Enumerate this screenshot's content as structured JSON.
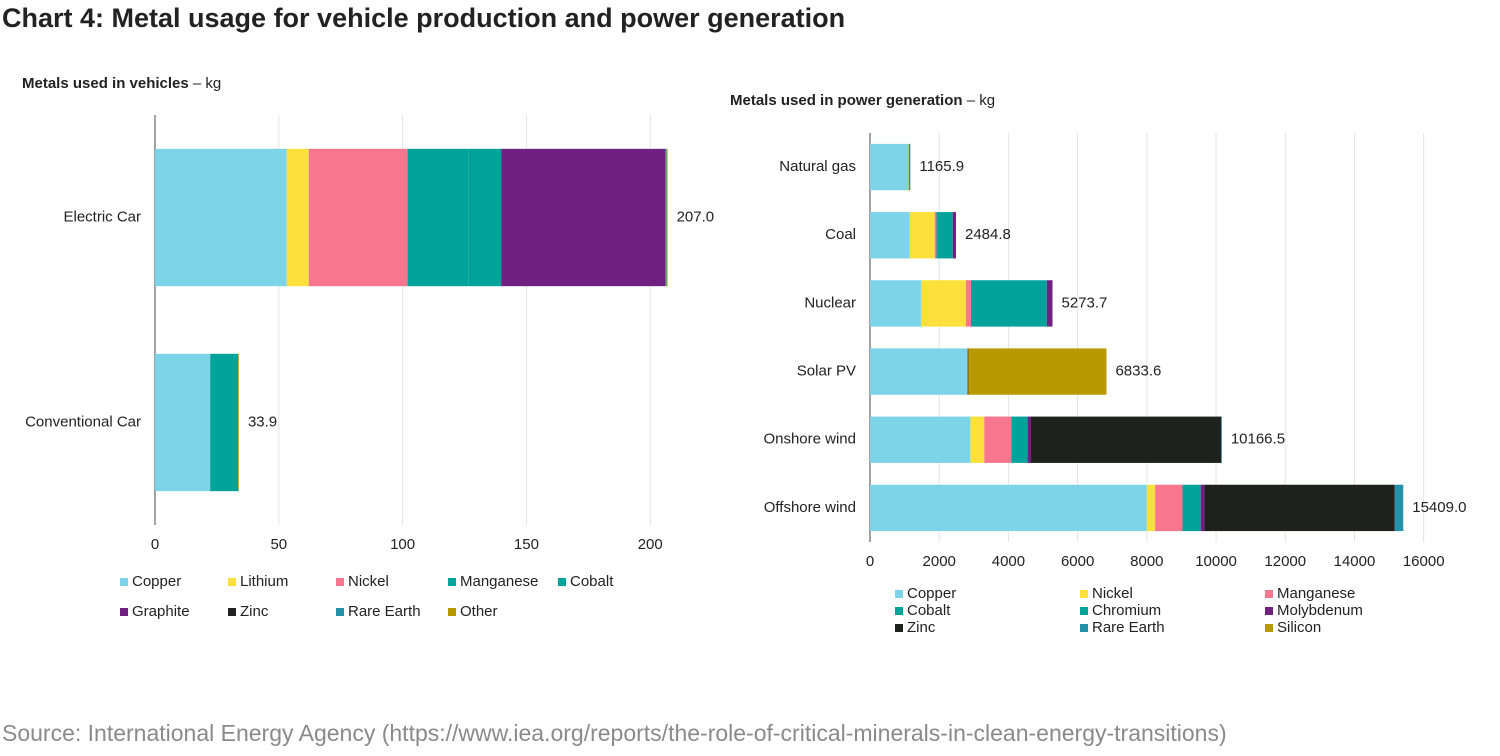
{
  "title": "Chart 4: Metal usage for vehicle production and power generation",
  "source": "Source: International Energy Agency (https://www.iea.org/reports/the-role-of-critical-minerals-in-clean-energy-transitions)",
  "chart_data": [
    {
      "type": "stacked_bar_horizontal",
      "title": "Metals used in vehicles",
      "unit": " – kg",
      "categories": [
        "Electric Car",
        "Conventional Car"
      ],
      "series": [
        {
          "name": "Copper",
          "color": "#7dd3e8",
          "values": [
            53.2,
            22.3
          ]
        },
        {
          "name": "Lithium",
          "color": "#fde03c",
          "values": [
            8.9,
            0
          ]
        },
        {
          "name": "Nickel",
          "color": "#f8778f",
          "values": [
            39.9,
            0
          ]
        },
        {
          "name": "Manganese",
          "color": "#00a39a",
          "values": [
            24.5,
            11.3
          ]
        },
        {
          "name": "Cobalt",
          "color": "#00a39a",
          "values": [
            13.3,
            0
          ]
        },
        {
          "name": "Graphite",
          "color": "#6f2080",
          "values": [
            66.3,
            0
          ]
        },
        {
          "name": "Zinc",
          "color": "#222222",
          "values": [
            0,
            0
          ]
        },
        {
          "name": "Rare Earth",
          "color": "#2491a8",
          "values": [
            0.5,
            0
          ]
        },
        {
          "name": "Other",
          "color": "#b89a00",
          "values": [
            0.4,
            0.3
          ]
        }
      ],
      "totals": [
        207.0,
        33.9
      ],
      "totals_labels": [
        "207.0",
        "33.9"
      ],
      "xlim": [
        0,
        210
      ],
      "xticks": [
        0,
        50,
        100,
        150,
        200
      ],
      "grid": true
    },
    {
      "type": "stacked_bar_horizontal",
      "title": "Metals used in power generation",
      "unit": " – kg",
      "categories": [
        "Natural gas",
        "Coal",
        "Nuclear",
        "Solar PV",
        "Onshore wind",
        "Offshore wind"
      ],
      "series": [
        {
          "name": "Copper",
          "color": "#7dd3e8",
          "values": [
            1100,
            1150,
            1473,
            2822,
            2900,
            8000
          ]
        },
        {
          "name": "Nickel",
          "color": "#fde03c",
          "values": [
            16,
            721,
            1297,
            0,
            404,
            240
          ]
        },
        {
          "name": "Manganese",
          "color": "#f8778f",
          "values": [
            0,
            50,
            148,
            0,
            780,
            790
          ]
        },
        {
          "name": "Cobalt",
          "color": "#00a39a",
          "values": [
            0,
            0,
            0,
            0,
            0,
            0
          ]
        },
        {
          "name": "Chromium",
          "color": "#00a39a",
          "values": [
            48.4,
            470,
            2190,
            0,
            470,
            525
          ]
        },
        {
          "name": "Molybdenum",
          "color": "#6f2080",
          "values": [
            1.5,
            93.8,
            165.7,
            0,
            99,
            109
          ]
        },
        {
          "name": "Zinc",
          "color": "#1f211f",
          "values": [
            0,
            0,
            0,
            21.6,
            5499.5,
            5500
          ]
        },
        {
          "name": "Rare Earth",
          "color": "#2491a8",
          "values": [
            0,
            0,
            0,
            0,
            14,
            245
          ]
        },
        {
          "name": "Silicon",
          "color": "#b89a00",
          "values": [
            0,
            0,
            0,
            3990,
            0,
            0
          ]
        }
      ],
      "totals": [
        1165.9,
        2484.8,
        5273.7,
        6833.6,
        10166.5,
        15409.0
      ],
      "totals_labels": [
        "1165.9",
        "2484.8",
        "5273.7",
        "6833.6",
        "10166.5",
        "15409.0"
      ],
      "xlim": [
        0,
        16500
      ],
      "xticks": [
        0,
        2000,
        4000,
        6000,
        8000,
        10000,
        12000,
        14000,
        16000
      ],
      "grid": true
    }
  ]
}
